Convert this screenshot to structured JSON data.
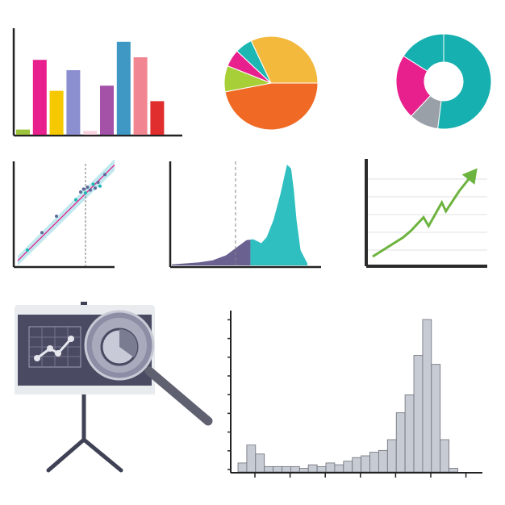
{
  "chart_data": [
    {
      "type": "bar",
      "categories": [
        "",
        "",
        "",
        "",
        "",
        "",
        "",
        "",
        "",
        ""
      ],
      "values": [
        4,
        58,
        34,
        50,
        3,
        38,
        72,
        60,
        26,
        0
      ],
      "colors": [
        "#9dc23b",
        "#e8208e",
        "#f5c800",
        "#8b8fd0",
        "#f8d3df",
        "#a352a8",
        "#3f97c4",
        "#f28592",
        "#e02d2d",
        "#ffffff"
      ],
      "axes": "left-bottom",
      "ylim": [
        0,
        80
      ]
    },
    {
      "type": "pie",
      "values": [
        47,
        9,
        6,
        6,
        32
      ],
      "colors": [
        "#f06a25",
        "#a7cf37",
        "#e8208e",
        "#1cb7b2",
        "#f3b93d"
      ],
      "start_angle_deg": 0
    },
    {
      "type": "pie",
      "donut": true,
      "values": [
        52,
        10,
        22,
        16
      ],
      "colors": [
        "#17b0b0",
        "#9aa0a8",
        "#e8208e",
        "#17b0b0"
      ],
      "start_angle_deg": -90
    },
    {
      "type": "scatter",
      "fit_line": true,
      "confidence_band": true,
      "vertical_reference_line": true,
      "x": [
        0.1,
        0.25,
        0.4,
        0.6,
        0.65,
        0.68,
        0.7,
        0.72,
        0.75,
        0.78,
        0.8,
        0.83,
        0.85,
        0.9
      ],
      "y": [
        0.1,
        0.28,
        0.45,
        0.62,
        0.7,
        0.73,
        0.69,
        0.75,
        0.72,
        0.78,
        0.74,
        0.8,
        0.76,
        0.88
      ],
      "colors": [
        "#5a6a9a",
        "#1cb7b2",
        "#e8208e",
        "#bfe9ee"
      ],
      "xlim": [
        0,
        1
      ],
      "ylim": [
        0,
        1
      ]
    },
    {
      "type": "area",
      "dashed_reference_line": true,
      "x": [
        0,
        0.1,
        0.2,
        0.3,
        0.4,
        0.5,
        0.55,
        0.6,
        0.63,
        0.66,
        0.7,
        0.75,
        0.8,
        0.85,
        0.88,
        0.9,
        0.92,
        0.95,
        1
      ],
      "y": [
        0.01,
        0.02,
        0.03,
        0.05,
        0.1,
        0.2,
        0.25,
        0.26,
        0.24,
        0.22,
        0.28,
        0.45,
        0.7,
        1.0,
        0.96,
        0.75,
        0.45,
        0.15,
        0.02
      ],
      "split_x": 0.58,
      "colors": [
        "#6a6190",
        "#2fbfc0",
        "#888888"
      ],
      "xlim": [
        0,
        1
      ],
      "ylim": [
        0,
        1
      ]
    },
    {
      "type": "line",
      "grid": true,
      "arrow_end": true,
      "x": [
        0,
        0.3,
        0.38,
        0.5,
        0.55,
        0.68,
        0.72,
        0.85,
        1
      ],
      "y": [
        0,
        0.22,
        0.3,
        0.45,
        0.35,
        0.62,
        0.52,
        0.75,
        0.97
      ],
      "color": "#6db33f",
      "xlim": [
        0,
        1
      ],
      "ylim": [
        0,
        1
      ]
    },
    {
      "type": "bar",
      "histogram": true,
      "ticks": true,
      "values": [
        5,
        15,
        10,
        3,
        3,
        3,
        3,
        2,
        4,
        3,
        5,
        4,
        6,
        8,
        9,
        11,
        12,
        18,
        33,
        43,
        65,
        85,
        60,
        18,
        2
      ],
      "colors": [
        "#c7cbd3",
        "#6d6f78"
      ],
      "ylim": [
        0,
        90
      ]
    }
  ],
  "illustration": {
    "presentation_board": {
      "frame_color": "#e9ecef",
      "board_color": "#4a4a62",
      "stand_color": "#3f4255",
      "mini_chart_color": "#d9dbe3",
      "magnifier": {
        "rim_color": "#8d8ea6",
        "lens_color": "#b4b6c7",
        "handle_color": "#5f6170"
      }
    }
  }
}
